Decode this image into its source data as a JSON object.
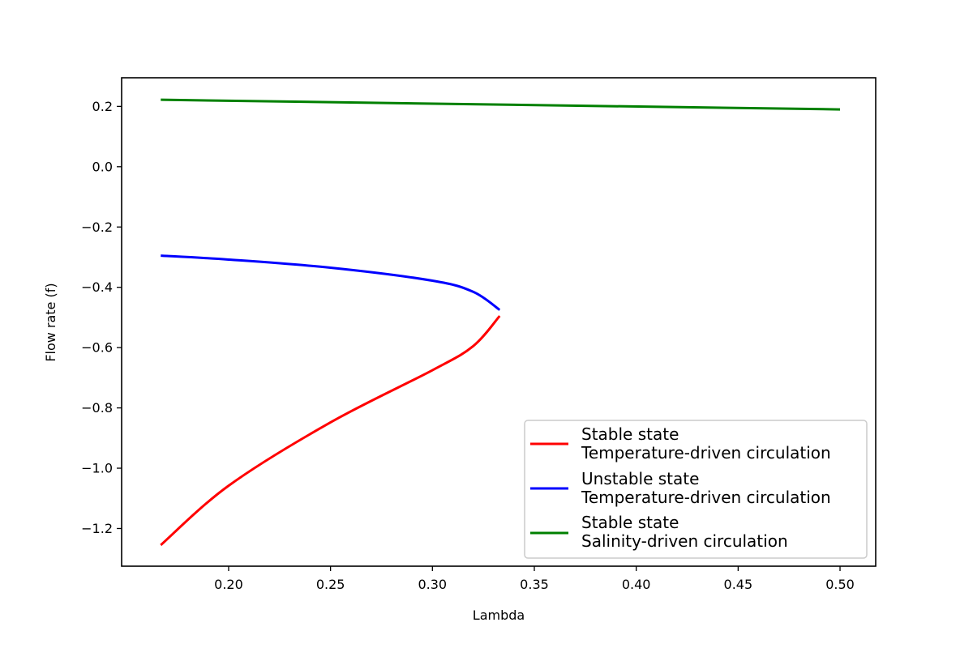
{
  "chart_data": {
    "type": "line",
    "xlabel": "Lambda",
    "ylabel": "Flow rate (f)",
    "xlim": [
      0.1475,
      0.5175
    ],
    "ylim": [
      -1.325,
      0.295
    ],
    "xticks": [
      0.2,
      0.25,
      0.3,
      0.35,
      0.4,
      0.45,
      0.5
    ],
    "xtick_labels": [
      "0.20",
      "0.25",
      "0.30",
      "0.35",
      "0.40",
      "0.45",
      "0.50"
    ],
    "yticks": [
      0.2,
      0.0,
      -0.2,
      -0.4,
      -0.6,
      -0.8,
      -1.0,
      -1.2
    ],
    "ytick_labels": [
      "0.2",
      "0.0",
      "−0.2",
      "−0.4",
      "−0.6",
      "−0.8",
      "−1.0",
      "−1.2"
    ],
    "grid": false,
    "legend_position": "lower-right",
    "series": [
      {
        "name_line1": "Stable state",
        "name_line2": "Temperature-driven circulation",
        "color": "#ff0000",
        "x": [
          0.1667,
          0.2,
          0.25,
          0.3,
          0.32,
          0.333
        ],
        "y": [
          -1.255,
          -1.058,
          -0.848,
          -0.675,
          -0.595,
          -0.495
        ]
      },
      {
        "name_line1": "Unstable state",
        "name_line2": "Temperature-driven circulation",
        "color": "#0000ff",
        "x": [
          0.1667,
          0.2,
          0.25,
          0.3,
          0.32,
          0.333
        ],
        "y": [
          -0.295,
          -0.308,
          -0.335,
          -0.378,
          -0.415,
          -0.475
        ]
      },
      {
        "name_line1": "Stable state",
        "name_line2": "Salinity-driven circulation",
        "color": "#008000",
        "x": [
          0.1667,
          0.5
        ],
        "y": [
          0.222,
          0.19
        ]
      }
    ]
  }
}
